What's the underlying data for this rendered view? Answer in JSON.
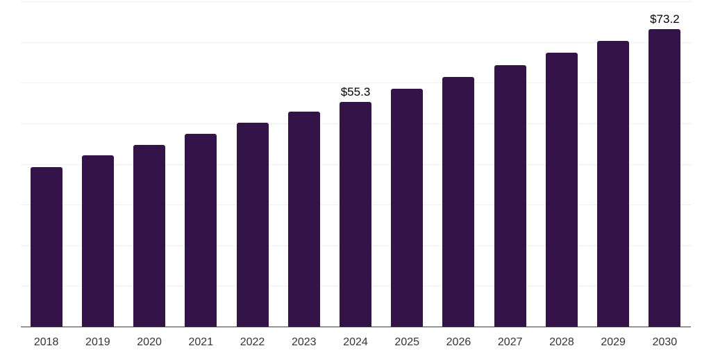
{
  "chart_data": {
    "type": "bar",
    "title": "",
    "xlabel": "",
    "ylabel": "",
    "categories": [
      "2018",
      "2019",
      "2020",
      "2021",
      "2022",
      "2023",
      "2024",
      "2025",
      "2026",
      "2027",
      "2028",
      "2029",
      "2030"
    ],
    "values": [
      39.2,
      42.1,
      44.7,
      47.4,
      50.2,
      52.9,
      55.3,
      58.5,
      61.4,
      64.3,
      67.3,
      70.3,
      73.2
    ],
    "value_labels": [
      {
        "category": "2024",
        "text": "$55.3"
      },
      {
        "category": "2030",
        "text": "$73.2"
      }
    ],
    "ylim": [
      0,
      80
    ],
    "gridline_step": 10,
    "grid": true,
    "legend": false,
    "y_tick_labels_visible": false,
    "colors": {
      "bar": "#341348",
      "gridline": "#f0f0f0",
      "axis_line": "#3d3d3d",
      "value_label": "#000000",
      "tick_label": "#333333",
      "background": "#ffffff"
    }
  }
}
